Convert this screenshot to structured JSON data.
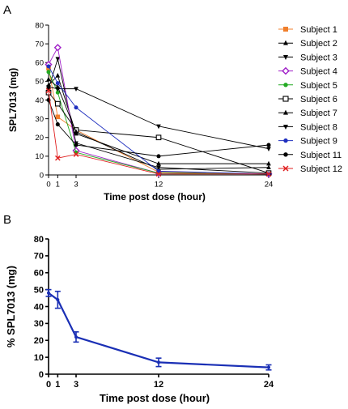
{
  "chart_data": [
    {
      "panel_label": "A",
      "type": "line",
      "title": "",
      "xlabel": "Time post dose (hour)",
      "ylabel": "SPL7013 (mg)",
      "xlim": [
        0,
        24
      ],
      "ylim": [
        0,
        80
      ],
      "xticks": [
        "0",
        "1",
        "3",
        "12",
        "24"
      ],
      "yticks": [
        "0",
        "10",
        "20",
        "30",
        "40",
        "50",
        "60",
        "70",
        "80"
      ],
      "legend_position": "right",
      "x": [
        0,
        1,
        3,
        12,
        24
      ],
      "series": [
        {
          "name": "Subject 1",
          "values": [
            57,
            31,
            24,
            1.5,
            0.5
          ],
          "color": "#f07f2c",
          "marker": "square-filled"
        },
        {
          "name": "Subject 2",
          "values": [
            48,
            53,
            22,
            6,
            6
          ],
          "color": "#000000",
          "marker": "triangle-up"
        },
        {
          "name": "Subject 3",
          "values": [
            46,
            62,
            17,
            4,
            1
          ],
          "color": "#000000",
          "marker": "triangle-down"
        },
        {
          "name": "Subject 4",
          "values": [
            59,
            68,
            13,
            1,
            0.5
          ],
          "color": "#a020c8",
          "marker": "diamond-open"
        },
        {
          "name": "Subject 5",
          "values": [
            55,
            44,
            12,
            1,
            0.5
          ],
          "color": "#22aa22",
          "marker": "circle-filled"
        },
        {
          "name": "Subject 6",
          "values": [
            44,
            38,
            24,
            20,
            1
          ],
          "color": "#000000",
          "marker": "square-open"
        },
        {
          "name": "Subject 7",
          "values": [
            51,
            47,
            23,
            3,
            4
          ],
          "color": "#000000",
          "marker": "triangle-up"
        },
        {
          "name": "Subject 8",
          "values": [
            47,
            46,
            46,
            26,
            14
          ],
          "color": "#000000",
          "marker": "triangle-down"
        },
        {
          "name": "Subject 9",
          "values": [
            58,
            49,
            36,
            2,
            0.5
          ],
          "color": "#1f2fbf",
          "marker": "circle-filled"
        },
        {
          "name": "Subject 11",
          "values": [
            40,
            27,
            16,
            10,
            16
          ],
          "color": "#000000",
          "marker": "circle-filled"
        },
        {
          "name": "Subject 12",
          "values": [
            45,
            9,
            11,
            0.5,
            0.5
          ],
          "color": "#e02020",
          "marker": "x"
        }
      ]
    },
    {
      "panel_label": "B",
      "type": "line",
      "title": "",
      "xlabel": "Time post dose (hour)",
      "ylabel": "% SPL7013 (mg)",
      "xlim": [
        0,
        24
      ],
      "ylim": [
        0,
        80
      ],
      "xticks": [
        "0",
        "1",
        "3",
        "12",
        "24"
      ],
      "yticks": [
        "0",
        "10",
        "20",
        "30",
        "40",
        "50",
        "60",
        "70",
        "80"
      ],
      "x": [
        0,
        1,
        3,
        12,
        24
      ],
      "series": [
        {
          "name": "",
          "values": [
            48,
            44,
            22,
            7,
            4
          ],
          "error": [
            2,
            5,
            3,
            2.5,
            1.5
          ],
          "color": "#1a2fb5"
        }
      ]
    }
  ]
}
